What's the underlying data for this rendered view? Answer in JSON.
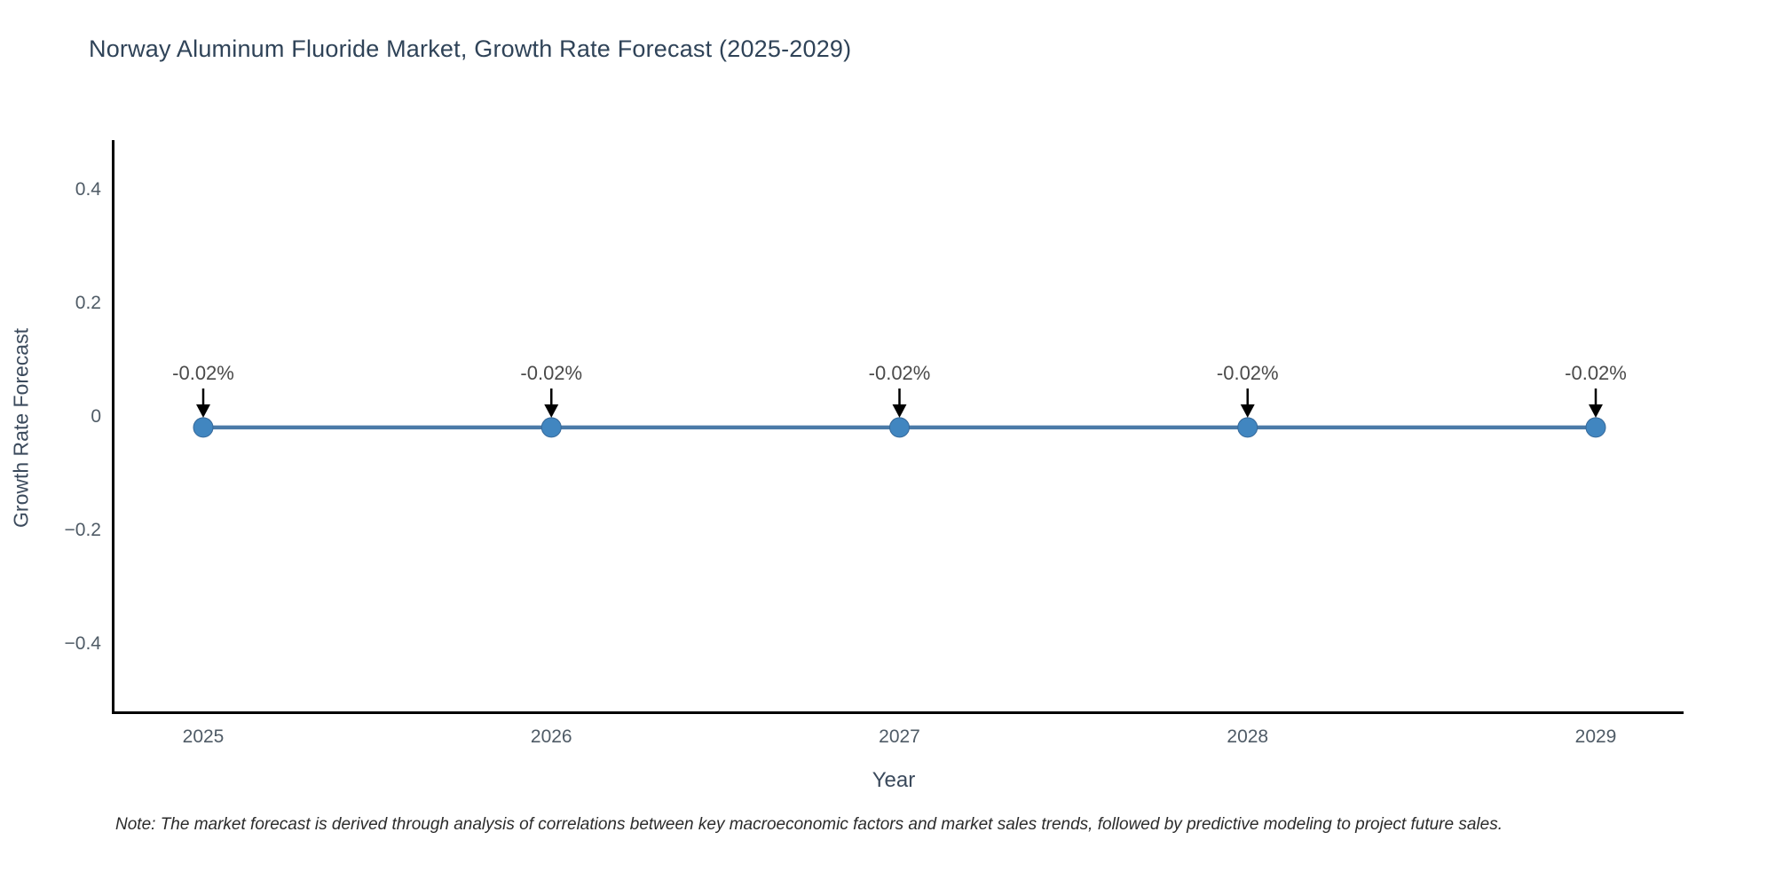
{
  "chart_data": {
    "type": "line",
    "title": "Norway Aluminum Fluoride Market, Growth Rate Forecast (2025-2029)",
    "xlabel": "Year",
    "ylabel": "Growth Rate Forecast",
    "note": "Note: The market forecast is derived through analysis of correlations between key macroeconomic factors and market sales trends, followed by predictive modeling to project future sales.",
    "categories": [
      "2025",
      "2026",
      "2027",
      "2028",
      "2029"
    ],
    "series": [
      {
        "name": "Growth Rate Forecast",
        "values": [
          -0.02,
          -0.02,
          -0.02,
          -0.02,
          -0.02
        ],
        "unit": "%",
        "point_labels": [
          "-0.02%",
          "-0.02%",
          "-0.02%",
          "-0.02%",
          "-0.02%"
        ]
      }
    ],
    "y_ticks": {
      "values": [
        0.4,
        0.2,
        0,
        -0.2,
        -0.4
      ],
      "labels": [
        "0.4",
        "0.2",
        "0",
        "−0.2",
        "−0.4"
      ]
    },
    "ylim": [
      -0.52,
      0.486
    ],
    "grid": false,
    "legend": "none",
    "annotation_style": "value-label-above-point-with-black-down-arrow",
    "colors": {
      "line": "#4a7aa8",
      "marker": "#4186c0",
      "marker_edge": "#36699a",
      "spine": "#000000",
      "tick_label": "#4f5b66",
      "axis_title": "#3b4a5c",
      "title": "#2f4358",
      "annotation_text": "#4a4a4a",
      "annotation_arrow": "#000000",
      "background": "#ffffff"
    }
  }
}
